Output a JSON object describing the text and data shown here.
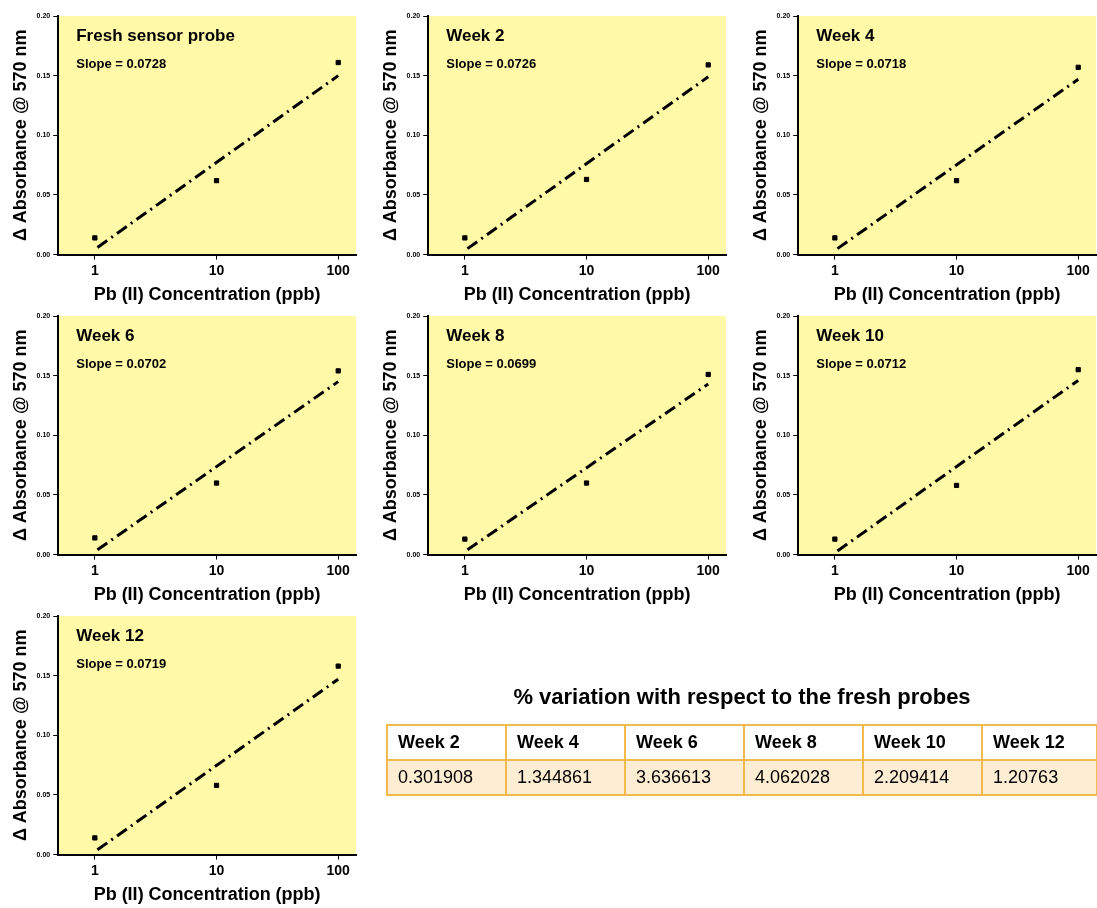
{
  "chart_data": [
    {
      "type": "scatter",
      "title": "Fresh sensor probe",
      "annotations": [
        "Slope = 0.0728"
      ],
      "xlabel": "Pb (II) Concentration (ppb)",
      "ylabel": "Δ Absorbance @ 570 nm",
      "log": "x",
      "xlim": [
        0.5,
        140
      ],
      "xticks": [
        1,
        10,
        100
      ],
      "ylim": [
        0,
        0.2
      ],
      "yticks": [
        {
          "value": 0,
          "label": "0.00"
        },
        {
          "value": 0.05,
          "label": "0.05"
        },
        {
          "value": 0.1,
          "label": "0.10"
        },
        {
          "value": 0.15,
          "label": "0.15"
        },
        {
          "value": 0.2,
          "label": "0.20"
        }
      ],
      "series": [
        {
          "type": "scatter",
          "color": "#000000",
          "marker": "square",
          "x": [
            1,
            10,
            100
          ],
          "values": [
            0.014,
            0.062,
            0.161
          ]
        },
        {
          "type": "line",
          "color": "#000000",
          "marker": "none",
          "line_style": "dashed",
          "x": [
            1.05,
            100
          ],
          "values": [
            0.006,
            0.15
          ]
        }
      ]
    },
    {
      "type": "scatter",
      "title": "Week 2",
      "annotations": [
        "Slope = 0.0726"
      ],
      "xlabel": "Pb (II) Concentration (ppb)",
      "ylabel": "Δ Absorbance @ 570 nm",
      "log": "x",
      "xlim": [
        0.5,
        140
      ],
      "xticks": [
        1,
        10,
        100
      ],
      "ylim": [
        0,
        0.2
      ],
      "yticks": [
        {
          "value": 0,
          "label": "0.00"
        },
        {
          "value": 0.05,
          "label": "0.05"
        },
        {
          "value": 0.1,
          "label": "0.10"
        },
        {
          "value": 0.15,
          "label": "0.15"
        },
        {
          "value": 0.2,
          "label": "0.20"
        }
      ],
      "series": [
        {
          "type": "scatter",
          "color": "#000000",
          "marker": "square",
          "x": [
            1,
            10,
            100
          ],
          "values": [
            0.014,
            0.063,
            0.159
          ]
        },
        {
          "type": "line",
          "color": "#000000",
          "marker": "none",
          "line_style": "dashed",
          "x": [
            1.05,
            100
          ],
          "values": [
            0.005,
            0.149
          ]
        }
      ]
    },
    {
      "type": "scatter",
      "title": "Week 4",
      "annotations": [
        "Slope = 0.0718"
      ],
      "xlabel": "Pb (II) Concentration (ppb)",
      "ylabel": "Δ Absorbance @ 570 nm",
      "log": "x",
      "xlim": [
        0.5,
        140
      ],
      "xticks": [
        1,
        10,
        100
      ],
      "ylim": [
        0,
        0.2
      ],
      "yticks": [
        {
          "value": 0,
          "label": "0.00"
        },
        {
          "value": 0.05,
          "label": "0.05"
        },
        {
          "value": 0.1,
          "label": "0.10"
        },
        {
          "value": 0.15,
          "label": "0.15"
        },
        {
          "value": 0.2,
          "label": "0.20"
        }
      ],
      "series": [
        {
          "type": "scatter",
          "color": "#000000",
          "marker": "square",
          "x": [
            1,
            10,
            100
          ],
          "values": [
            0.014,
            0.062,
            0.157
          ]
        },
        {
          "type": "line",
          "color": "#000000",
          "marker": "none",
          "line_style": "dashed",
          "x": [
            1.05,
            100
          ],
          "values": [
            0.005,
            0.147
          ]
        }
      ]
    },
    {
      "type": "scatter",
      "title": "Week 6",
      "annotations": [
        "Slope = 0.0702"
      ],
      "xlabel": "Pb (II) Concentration (ppb)",
      "ylabel": "Δ Absorbance @ 570 nm",
      "log": "x",
      "xlim": [
        0.5,
        140
      ],
      "xticks": [
        1,
        10,
        100
      ],
      "ylim": [
        0,
        0.2
      ],
      "yticks": [
        {
          "value": 0,
          "label": "0.00"
        },
        {
          "value": 0.05,
          "label": "0.05"
        },
        {
          "value": 0.1,
          "label": "0.10"
        },
        {
          "value": 0.15,
          "label": "0.15"
        },
        {
          "value": 0.2,
          "label": "0.20"
        }
      ],
      "series": [
        {
          "type": "scatter",
          "color": "#000000",
          "marker": "square",
          "x": [
            1,
            10,
            100
          ],
          "values": [
            0.014,
            0.06,
            0.154
          ]
        },
        {
          "type": "line",
          "color": "#000000",
          "marker": "none",
          "line_style": "dashed",
          "x": [
            1.05,
            100
          ],
          "values": [
            0.004,
            0.145
          ]
        }
      ]
    },
    {
      "type": "scatter",
      "title": "Week 8",
      "annotations": [
        "Slope = 0.0699"
      ],
      "xlabel": "Pb (II) Concentration (ppb)",
      "ylabel": "Δ Absorbance @ 570 nm",
      "log": "x",
      "xlim": [
        0.5,
        140
      ],
      "xticks": [
        1,
        10,
        100
      ],
      "ylim": [
        0,
        0.2
      ],
      "yticks": [
        {
          "value": 0,
          "label": "0.00"
        },
        {
          "value": 0.05,
          "label": "0.05"
        },
        {
          "value": 0.1,
          "label": "0.10"
        },
        {
          "value": 0.15,
          "label": "0.15"
        },
        {
          "value": 0.2,
          "label": "0.20"
        }
      ],
      "series": [
        {
          "type": "scatter",
          "color": "#000000",
          "marker": "square",
          "x": [
            1,
            10,
            100
          ],
          "values": [
            0.013,
            0.06,
            0.151
          ]
        },
        {
          "type": "line",
          "color": "#000000",
          "marker": "none",
          "line_style": "dashed",
          "x": [
            1.05,
            100
          ],
          "values": [
            0.004,
            0.143
          ]
        }
      ]
    },
    {
      "type": "scatter",
      "title": "Week 10",
      "annotations": [
        "Slope = 0.0712"
      ],
      "xlabel": "Pb (II) Concentration (ppb)",
      "ylabel": "Δ Absorbance @ 570 nm",
      "log": "x",
      "xlim": [
        0.5,
        140
      ],
      "xticks": [
        1,
        10,
        100
      ],
      "ylim": [
        0,
        0.2
      ],
      "yticks": [
        {
          "value": 0,
          "label": "0.00"
        },
        {
          "value": 0.05,
          "label": "0.05"
        },
        {
          "value": 0.1,
          "label": "0.10"
        },
        {
          "value": 0.15,
          "label": "0.15"
        },
        {
          "value": 0.2,
          "label": "0.20"
        }
      ],
      "series": [
        {
          "type": "scatter",
          "color": "#000000",
          "marker": "square",
          "x": [
            1,
            10,
            100
          ],
          "values": [
            0.013,
            0.058,
            0.155
          ]
        },
        {
          "type": "line",
          "color": "#000000",
          "marker": "none",
          "line_style": "dashed",
          "x": [
            1.05,
            100
          ],
          "values": [
            0.003,
            0.146
          ]
        }
      ]
    },
    {
      "type": "scatter",
      "title": "Week 12",
      "annotations": [
        "Slope = 0.0719"
      ],
      "xlabel": "Pb (II) Concentration (ppb)",
      "ylabel": "Δ Absorbance @ 570 nm",
      "log": "x",
      "xlim": [
        0.5,
        140
      ],
      "xticks": [
        1,
        10,
        100
      ],
      "ylim": [
        0,
        0.2
      ],
      "yticks": [
        {
          "value": 0,
          "label": "0.00"
        },
        {
          "value": 0.05,
          "label": "0.05"
        },
        {
          "value": 0.1,
          "label": "0.10"
        },
        {
          "value": 0.15,
          "label": "0.15"
        },
        {
          "value": 0.2,
          "label": "0.20"
        }
      ],
      "series": [
        {
          "type": "scatter",
          "color": "#000000",
          "marker": "square",
          "x": [
            1,
            10,
            100
          ],
          "values": [
            0.014,
            0.058,
            0.158
          ]
        },
        {
          "type": "line",
          "color": "#000000",
          "marker": "none",
          "line_style": "dashed",
          "x": [
            1.05,
            100
          ],
          "values": [
            0.004,
            0.147
          ]
        }
      ]
    },
    {
      "type": "other",
      "title": "% variation with respect to the fresh probes",
      "categories": [
        "Week 2",
        "Week 4",
        "Week 6",
        "Week 8",
        "Week 10",
        "Week 12"
      ],
      "values": [
        0.301908,
        1.344861,
        3.636613,
        4.062028,
        2.209414,
        1.20763
      ],
      "data_labels": true
    }
  ]
}
